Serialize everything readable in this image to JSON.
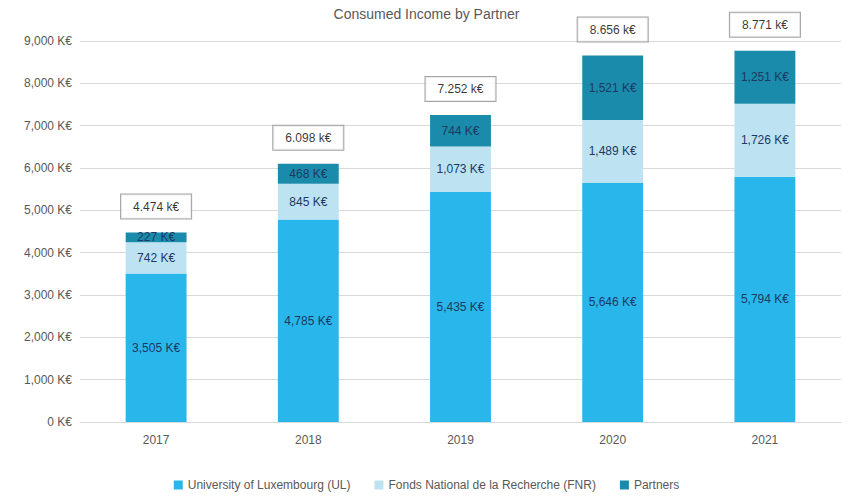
{
  "chart_data": {
    "type": "bar",
    "title": "Consumed Income by Partner",
    "categories": [
      "2017",
      "2018",
      "2019",
      "2020",
      "2021"
    ],
    "stacked": true,
    "data_labels": true,
    "grid": true,
    "legend": "bottom",
    "ylim": [
      0,
      9000
    ],
    "yticks": [
      {
        "value": 0,
        "label": "0 K€"
      },
      {
        "value": 1000,
        "label": "1,000 K€"
      },
      {
        "value": 2000,
        "label": "2,000 K€"
      },
      {
        "value": 3000,
        "label": "3,000 K€"
      },
      {
        "value": 4000,
        "label": "4,000 K€"
      },
      {
        "value": 5000,
        "label": "5,000 K€"
      },
      {
        "value": 6000,
        "label": "6,000 K€"
      },
      {
        "value": 7000,
        "label": "7,000 K€"
      },
      {
        "value": 8000,
        "label": "8,000 K€"
      },
      {
        "value": 9000,
        "label": "9,000 K€"
      }
    ],
    "series": [
      {
        "name": "University of Luxembourg (UL)",
        "color": "#29B6EA",
        "values": [
          3505,
          4785,
          5435,
          5646,
          5794
        ],
        "value_labels": [
          "3,505 K€",
          "4,785 K€",
          "5,435 K€",
          "5,646 K€",
          "5,794 K€"
        ]
      },
      {
        "name": "Fonds National de la Recherche (FNR)",
        "color": "#BDE3F2",
        "values": [
          742,
          845,
          1073,
          1489,
          1726
        ],
        "value_labels": [
          "742 K€",
          "845 K€",
          "1,073 K€",
          "1,489 K€",
          "1,726 K€"
        ]
      },
      {
        "name": "Partners",
        "color": "#1A8BAA",
        "values": [
          227,
          468,
          744,
          1521,
          1251
        ],
        "value_labels": [
          "227 K€",
          "468 K€",
          "744 K€",
          "1,521 K€",
          "1,251 K€"
        ]
      }
    ],
    "annotations": [
      {
        "x": "2017",
        "y": 4474,
        "text": "4.474 k€"
      },
      {
        "x": "2018",
        "y": 6098,
        "text": "6.098 k€"
      },
      {
        "x": "2019",
        "y": 7252,
        "text": "7.252 k€"
      },
      {
        "x": "2020",
        "y": 8656,
        "text": "8.656 k€"
      },
      {
        "x": "2021",
        "y": 8771,
        "text": "8.771 k€"
      }
    ]
  }
}
